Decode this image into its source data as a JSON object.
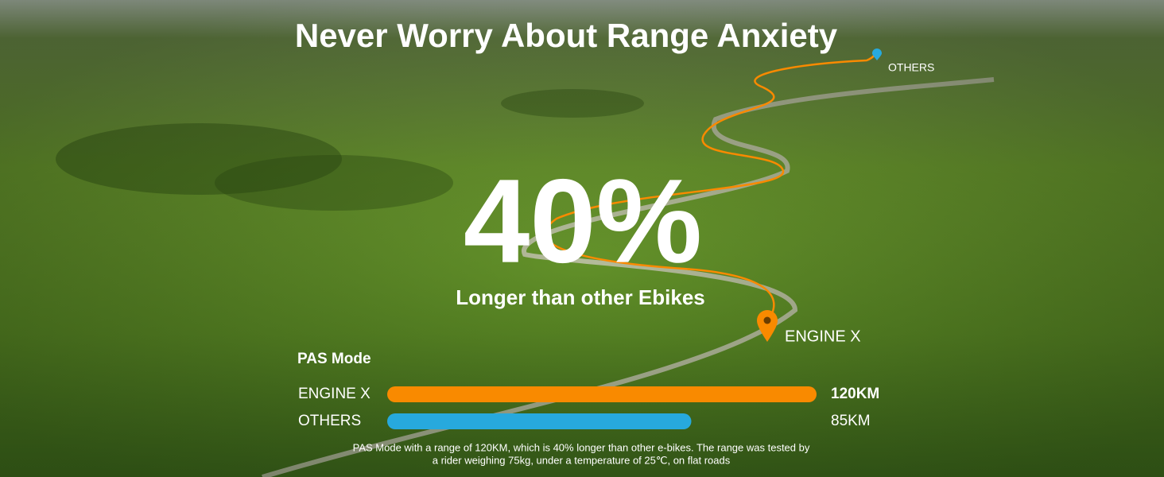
{
  "header": {
    "title": "Never Worry About Range Anxiety"
  },
  "hero": {
    "headline": "40%",
    "subtitle": "Longer than other Ebikes"
  },
  "map_labels": {
    "others": "OTHERS",
    "engine": "ENGINE X"
  },
  "chart_data": {
    "type": "bar",
    "orientation": "horizontal",
    "title": "PAS Mode",
    "categories": [
      "ENGINE X",
      "OTHERS"
    ],
    "values": [
      120,
      85
    ],
    "value_labels": [
      "120KM",
      "85KM"
    ],
    "colors": [
      "#f98a00",
      "#27a9dd"
    ]
  },
  "footnote": [
    "PAS Mode with a range of 120KM, which is 40% longer than other e-bikes. The range was tested by",
    "a rider weighing 75kg, under a temperature of 25℃, on flat roads"
  ]
}
